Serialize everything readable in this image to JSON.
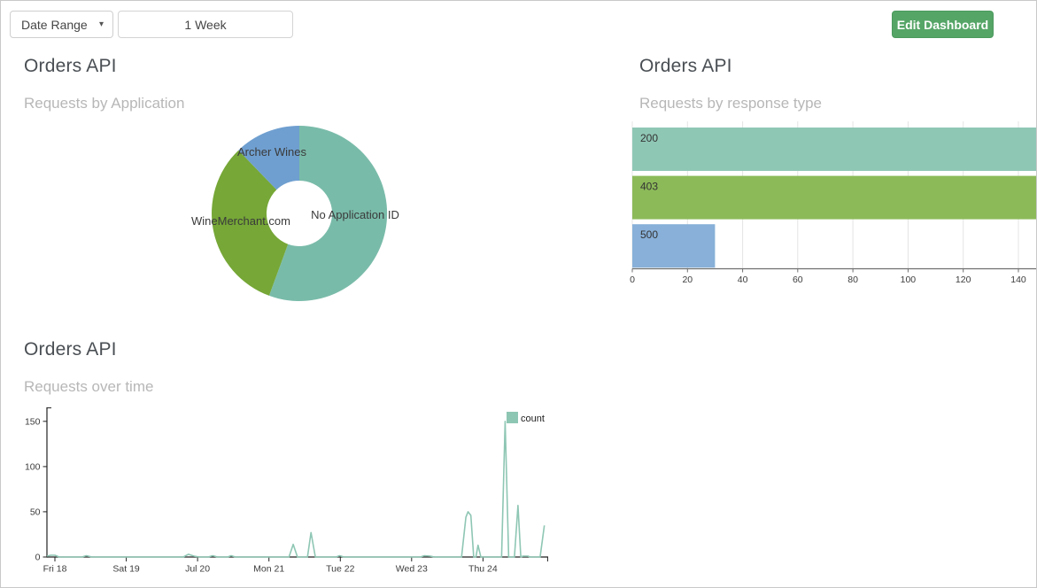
{
  "toolbar": {
    "date_range_label": "Date Range",
    "caret_glyph": "▾",
    "period_value": "1 Week",
    "edit_button_label": "Edit Dashboard"
  },
  "colors": {
    "button_green": "#55a567",
    "donut_teal": "#79bba9",
    "donut_green": "#76a737",
    "donut_blue": "#6f9fd0",
    "bar_teal": "#8fc7b5",
    "bar_green": "#8cba59",
    "bar_blue": "#88b0d8",
    "line_teal": "#8ec6b4",
    "title_text": "#4a4f54",
    "subtitle_text": "#b7b7b7",
    "grid": "#e4e4e4",
    "axis": "#222222"
  },
  "panels": [
    {
      "title": "Orders API",
      "subtitle": "Requests by Application"
    },
    {
      "title": "Orders API",
      "subtitle": "Requests by response type"
    },
    {
      "title": "Orders API",
      "subtitle": "Requests over time"
    }
  ],
  "chart_data": [
    {
      "type": "pie",
      "donut": true,
      "title": "Orders API",
      "subtitle": "Requests by Application",
      "start_angle_deg": 0,
      "direction": "clockwise",
      "slices": [
        {
          "label": "No Application ID",
          "percent": 55.6,
          "color": "#79bba9",
          "label_x": 400,
          "label_y": 246
        },
        {
          "label": "WineMerchant.com",
          "percent": 32.2,
          "color": "#76a737",
          "label_x": 271,
          "label_y": 253
        },
        {
          "label": "Archer Wines",
          "percent": 12.2,
          "color": "#6f9fd0",
          "label_x": 306,
          "label_y": 175
        }
      ]
    },
    {
      "type": "bar",
      "orientation": "horizontal",
      "title": "Orders API",
      "subtitle": "Requests by response type",
      "categories": [
        "200",
        "403",
        "500"
      ],
      "bars": [
        {
          "label": "200",
          "value": null,
          "min_value": 147,
          "clipped": true,
          "color": "#8fc7b5"
        },
        {
          "label": "403",
          "value": null,
          "min_value": 147,
          "clipped": true,
          "color": "#8cba59"
        },
        {
          "label": "500",
          "value": 30,
          "clipped": false,
          "color": "#88b0d8"
        }
      ],
      "x_ticks": [
        0,
        20,
        40,
        60,
        80,
        100,
        120,
        140
      ],
      "xlim": [
        0,
        147
      ],
      "grid": true
    },
    {
      "type": "line",
      "title": "Orders API",
      "subtitle": "Requests over time",
      "x_ticks": [
        "Fri 18",
        "Sat 19",
        "Jul 20",
        "Mon 21",
        "Tue 22",
        "Wed 23",
        "Thu 24"
      ],
      "y_ticks": [
        0,
        50,
        100,
        150
      ],
      "ylim": [
        0,
        162
      ],
      "xlim_days": [
        -0.11,
        6.91
      ],
      "grid": false,
      "legend": {
        "label": "count",
        "position": "top-right"
      },
      "series": [
        {
          "name": "count",
          "color": "#8ec6b4",
          "points_day_value": [
            [
              -0.11,
              1
            ],
            [
              -0.06,
              2
            ],
            [
              0,
              2
            ],
            [
              0.06,
              0
            ],
            [
              0.38,
              0
            ],
            [
              0.44,
              1.5
            ],
            [
              0.52,
              0
            ],
            [
              1.8,
              0
            ],
            [
              1.87,
              3
            ],
            [
              1.95,
              1
            ],
            [
              2.02,
              0
            ],
            [
              2.15,
              0
            ],
            [
              2.21,
              1.5
            ],
            [
              2.28,
              0
            ],
            [
              2.42,
              0
            ],
            [
              2.47,
              1.5
            ],
            [
              2.53,
              0
            ],
            [
              3.28,
              0
            ],
            [
              3.34,
              14
            ],
            [
              3.4,
              0
            ],
            [
              3.54,
              0
            ],
            [
              3.59,
              27
            ],
            [
              3.65,
              0
            ],
            [
              3.94,
              0
            ],
            [
              3.99,
              1.5
            ],
            [
              4.05,
              0
            ],
            [
              5.12,
              0
            ],
            [
              5.18,
              1.5
            ],
            [
              5.26,
              1
            ],
            [
              5.32,
              0
            ],
            [
              5.7,
              0
            ],
            [
              5.76,
              44
            ],
            [
              5.79,
              50
            ],
            [
              5.83,
              46
            ],
            [
              5.87,
              0
            ],
            [
              5.9,
              0
            ],
            [
              5.93,
              13
            ],
            [
              5.97,
              0
            ],
            [
              6.26,
              0
            ],
            [
              6.31,
              150
            ],
            [
              6.36,
              0
            ],
            [
              6.44,
              0
            ],
            [
              6.49,
              57
            ],
            [
              6.53,
              0
            ],
            [
              6.56,
              1
            ],
            [
              6.63,
              1
            ],
            [
              6.66,
              0
            ],
            [
              6.8,
              0
            ],
            [
              6.86,
              35
            ]
          ]
        }
      ]
    }
  ]
}
